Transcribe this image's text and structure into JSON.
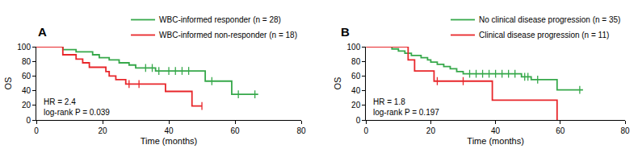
{
  "chart_data": [
    {
      "type": "line",
      "panel_label": "A",
      "line_style": "step",
      "marker": "line-ns",
      "legend": "top-right",
      "x_label": "Time (months)",
      "y_label": "OS",
      "xlim": [
        0,
        80
      ],
      "xticks": [
        0,
        20,
        40,
        60,
        80
      ],
      "ylim": [
        0,
        100
      ],
      "yticks": [
        0,
        20,
        40,
        60,
        80,
        100
      ],
      "annotations": [
        "HR = 2.4",
        "log-rank P = 0.039"
      ],
      "series": [
        {
          "name": "WBC-informed responder (n = 28)",
          "color": "#36a84a",
          "x": [
            0,
            8,
            12,
            17,
            19,
            22,
            25,
            28,
            30,
            36,
            51,
            59,
            67
          ],
          "values": [
            100,
            96,
            93,
            89,
            85,
            82,
            78,
            75,
            71,
            67,
            53,
            35,
            35
          ],
          "censored": [
            33,
            35,
            37,
            40,
            42,
            44,
            46,
            53,
            61,
            66
          ]
        },
        {
          "name": "WBC-informed non-responder (n = 18)",
          "color": "#e8262a",
          "x": [
            0,
            8,
            12,
            14,
            16,
            21,
            22,
            24,
            27,
            39,
            47,
            50
          ],
          "values": [
            100,
            89,
            83,
            78,
            72,
            66,
            60,
            55,
            49,
            39,
            19,
            19
          ],
          "censored": [
            28,
            31,
            50
          ]
        }
      ]
    },
    {
      "type": "line",
      "panel_label": "B",
      "line_style": "step",
      "marker": "line-ns",
      "legend": "top-right",
      "x_label": "Time (months)",
      "y_label": "OS",
      "xlim": [
        0,
        80
      ],
      "xticks": [
        0,
        20,
        40,
        60,
        80
      ],
      "ylim": [
        0,
        100
      ],
      "yticks": [
        0,
        20,
        40,
        60,
        80,
        100
      ],
      "annotations": [
        "HR = 1.8",
        "log-rank P = 0.197"
      ],
      "series": [
        {
          "name": "No clinical disease progression (n = 35)",
          "color": "#36a84a",
          "x": [
            0,
            8,
            10,
            12,
            14,
            17,
            19,
            20,
            22,
            24,
            26,
            28,
            30,
            48,
            51,
            59,
            67
          ],
          "values": [
            100,
            97,
            94,
            91,
            88,
            85,
            82,
            79,
            76,
            73,
            70,
            66,
            63,
            59,
            55,
            41,
            41
          ],
          "censored": [
            32,
            34,
            36,
            38,
            40,
            42,
            44,
            46,
            49,
            50,
            53,
            66
          ]
        },
        {
          "name": "Clinical disease progression (n = 11)",
          "color": "#e8262a",
          "x": [
            0,
            13,
            15,
            21,
            39,
            59
          ],
          "values": [
            100,
            82,
            67,
            53,
            27,
            0
          ],
          "censored": [
            22,
            30
          ]
        }
      ]
    }
  ]
}
